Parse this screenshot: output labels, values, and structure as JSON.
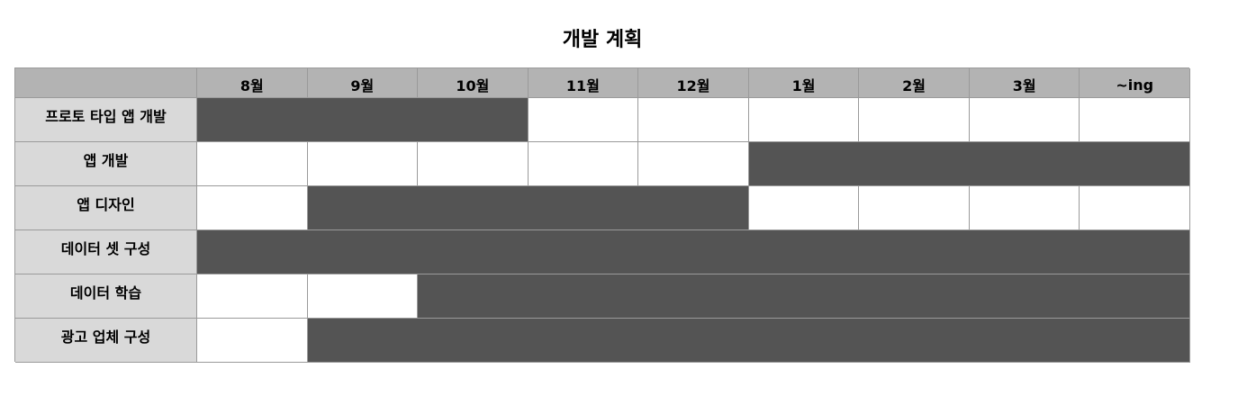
{
  "title": "개발 계획",
  "colors": {
    "header_bg": "#b3b3b3",
    "label_bg": "#d9d9d9",
    "filled": "#545454",
    "empty": "#ffffff",
    "grid": "#9a9a9a"
  },
  "chart_data": {
    "type": "table",
    "title": "개발 계획",
    "columns": [
      "8월",
      "9월",
      "10월",
      "11월",
      "12월",
      "1월",
      "2월",
      "3월",
      "~ing"
    ],
    "tasks": [
      {
        "name": "프로토 타입 앱 개발",
        "start": 0,
        "end": 2
      },
      {
        "name": "앱 개발",
        "start": 5,
        "end": 8
      },
      {
        "name": "앱 디자인",
        "start": 1,
        "end": 4
      },
      {
        "name": "데이터 셋 구성",
        "start": 0,
        "end": 8
      },
      {
        "name": "데이터 학습",
        "start": 2,
        "end": 8
      },
      {
        "name": "광고 업체 구성",
        "start": 1,
        "end": 8
      }
    ]
  }
}
